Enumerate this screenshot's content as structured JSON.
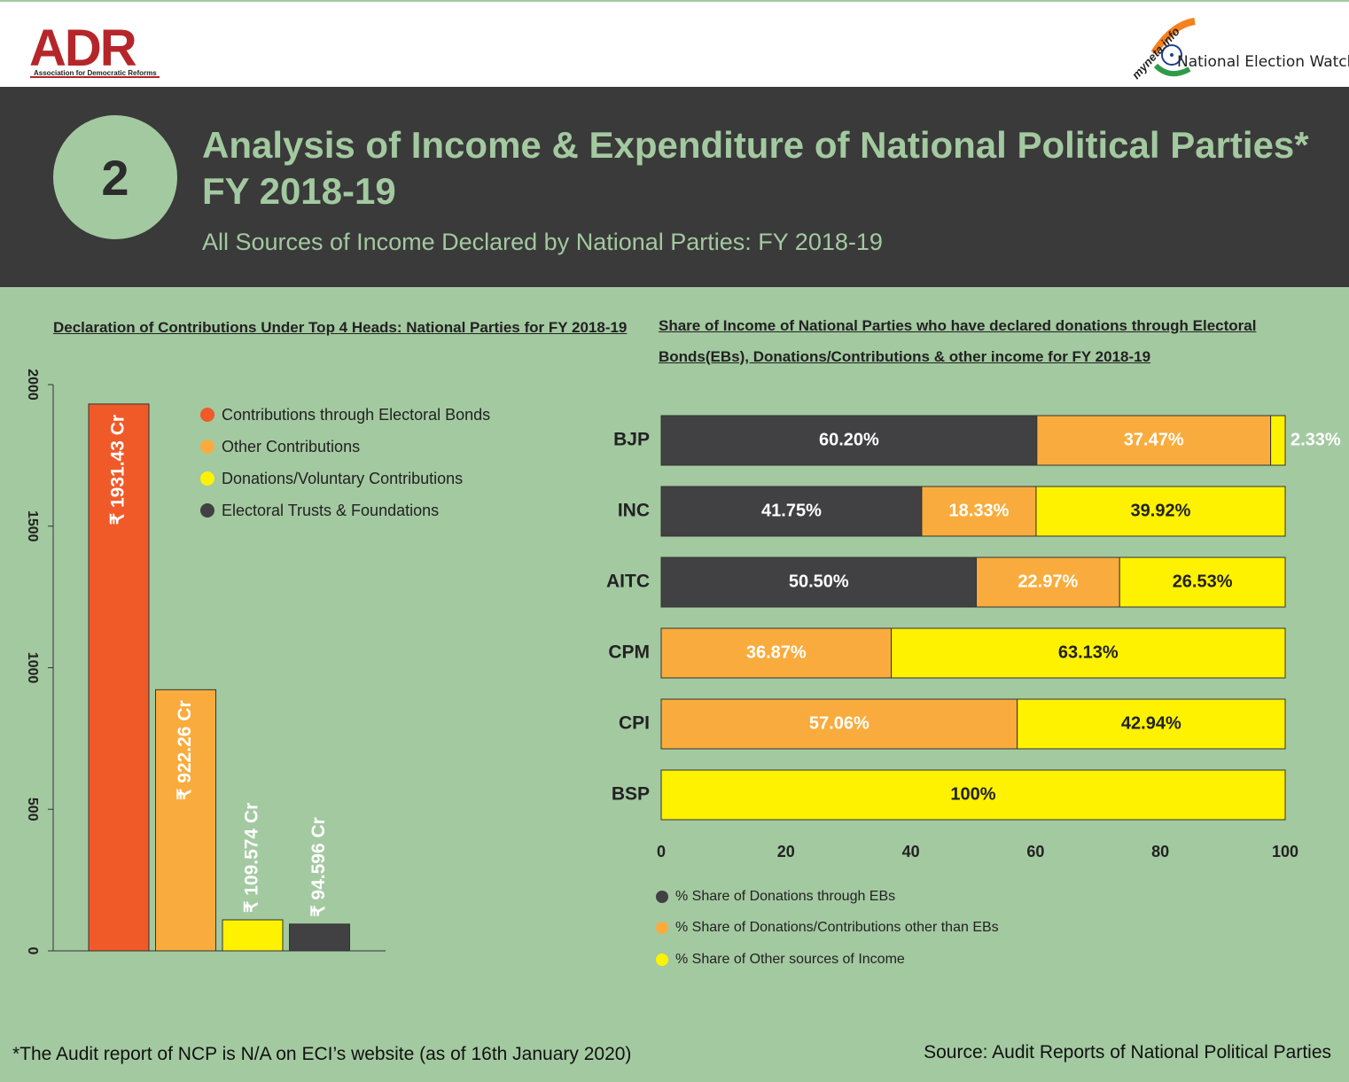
{
  "logos": {
    "adr_name": "ADR",
    "adr_full": "Association for Democratic Reforms",
    "myneta": "myneta.info",
    "new": "National Election Watch"
  },
  "header": {
    "number": "2",
    "title_line1": "Analysis of Income & Expenditure of National Political Parties*",
    "title_line2": "FY 2018-19",
    "subtitle": "All Sources of Income Declared by National Parties: FY 2018-19"
  },
  "colors": {
    "header_bg": "#3a3a3a",
    "accent_green": "#a3c9a0",
    "electoral_bonds": "#f05a28",
    "other_contributions": "#f9ac3d",
    "donations_voluntary": "#fff200",
    "trusts": "#414042"
  },
  "chart_data": [
    {
      "type": "bar",
      "title": "Declaration of Contributions Under Top 4 Heads: National Parties for FY 2018-19",
      "categories": [
        "Contributions through Electoral Bonds",
        "Other Contributions",
        "Donations/Voluntary Contributions",
        "Electoral Trusts & Foundations"
      ],
      "values": [
        1931.43,
        922.26,
        109.574,
        94.596
      ],
      "labels": [
        "₹ 1931.43 Cr",
        "₹ 922.26 Cr",
        "₹ 109.574 Cr",
        "₹ 94.596 Cr"
      ],
      "colors": [
        "#f05a28",
        "#f9ac3d",
        "#fff200",
        "#414042"
      ],
      "ylim": [
        0,
        2000
      ],
      "yticks": [
        "0",
        "500",
        "1000",
        "1500",
        "2000"
      ],
      "legend_position": "top-right"
    },
    {
      "type": "bar",
      "orientation": "horizontal",
      "stacked": true,
      "title": "Share of Income of National Parties who have declared donations through  Electoral Bonds(EBs), Donations/Contributions & other income for FY 2018-19",
      "categories": [
        "BJP",
        "INC",
        "AITC",
        "CPM",
        "CPI",
        "BSP"
      ],
      "series": [
        {
          "name": "% Share of Donations through EBs",
          "color": "#414042",
          "values": [
            60.2,
            41.75,
            50.5,
            0,
            0,
            0
          ],
          "labels": [
            "60.20%",
            "41.75%",
            "50.50%",
            "",
            "",
            ""
          ]
        },
        {
          "name": "% Share of Donations/Contributions other than EBs",
          "color": "#f9ac3d",
          "values": [
            37.47,
            18.33,
            22.97,
            36.87,
            57.06,
            0
          ],
          "labels": [
            "37.47%",
            "18.33%",
            "22.97%",
            "36.87%",
            "57.06%",
            ""
          ]
        },
        {
          "name": "% Share of Other sources of Income",
          "color": "#fff200",
          "values": [
            2.33,
            39.92,
            26.53,
            63.13,
            42.94,
            100
          ],
          "labels": [
            "2.33%",
            "39.92%",
            "26.53%",
            "63.13%",
            "42.94%",
            "100%"
          ]
        }
      ],
      "xlim": [
        0,
        100
      ],
      "xticks": [
        "0",
        "20",
        "40",
        "60",
        "80",
        "100"
      ],
      "legend_position": "bottom-left"
    }
  ],
  "footnote": "*The Audit report of NCP is N/A on ECI’s website (as of 16th January 2020)",
  "source": "Source: Audit Reports of National Political Parties"
}
